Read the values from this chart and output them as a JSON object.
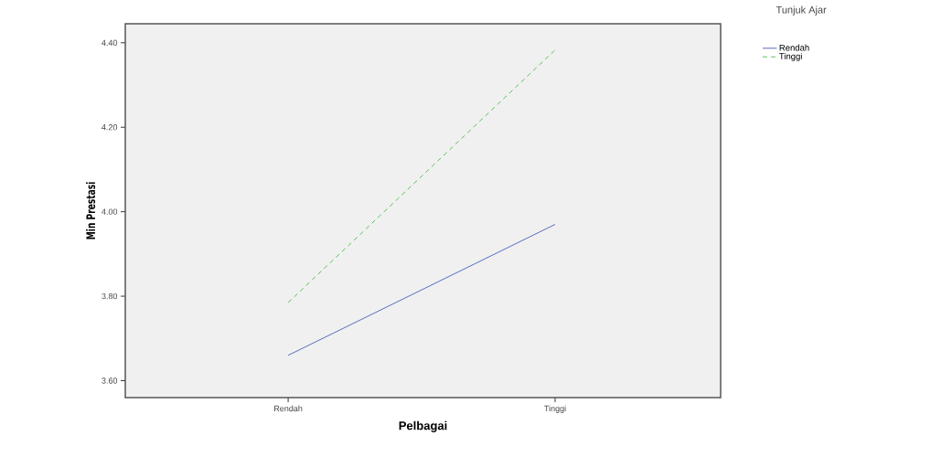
{
  "chart_data": {
    "type": "line",
    "xlabel": "Pelbagai",
    "ylabel": "Min Prestasi",
    "legend_title": "Tunjuk Ajar",
    "categories": [
      "Rendah",
      "Tinggi"
    ],
    "series": [
      {
        "name": "Rendah",
        "color": "#5a6bbf",
        "values": [
          3.66,
          3.97
        ],
        "line_style": "solid"
      },
      {
        "name": "Tinggi",
        "color": "#5cbf5c",
        "values": [
          3.785,
          4.383
        ],
        "line_style": "dashed"
      }
    ],
    "ylim": [
      3.56,
      4.445
    ],
    "yticks": [
      {
        "value": 3.6,
        "label": "3.60"
      },
      {
        "value": 3.8,
        "label": "3.80"
      },
      {
        "value": 4.0,
        "label": "4.00"
      },
      {
        "value": 4.2,
        "label": "4.20"
      },
      {
        "value": 4.4,
        "label": "4.40"
      }
    ],
    "grid": false,
    "legend": "top right",
    "marker": "none"
  }
}
